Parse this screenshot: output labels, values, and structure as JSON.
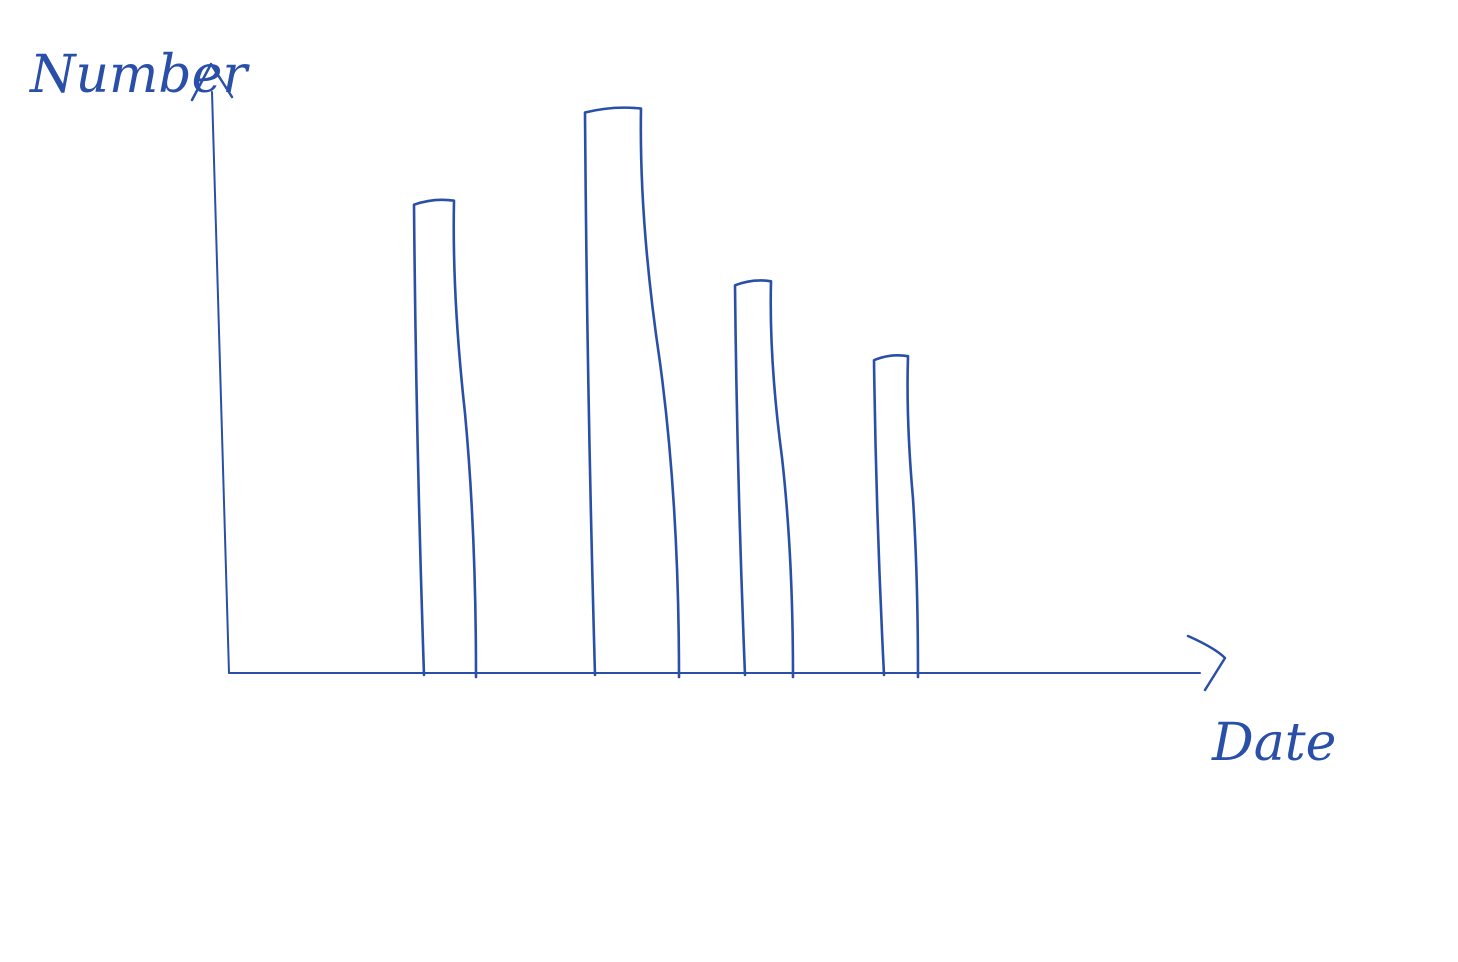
{
  "chart_data": {
    "type": "bar",
    "categories": [
      "",
      "",
      "",
      ""
    ],
    "values": [
      8.2,
      9.8,
      6.8,
      5.5
    ],
    "ylim": [
      0,
      10
    ],
    "title": "",
    "xlabel": "Date",
    "ylabel": "Number",
    "grid": false,
    "ticks": false
  },
  "colors": {
    "ink": "#2a4fa8",
    "background": "#ffffff"
  }
}
